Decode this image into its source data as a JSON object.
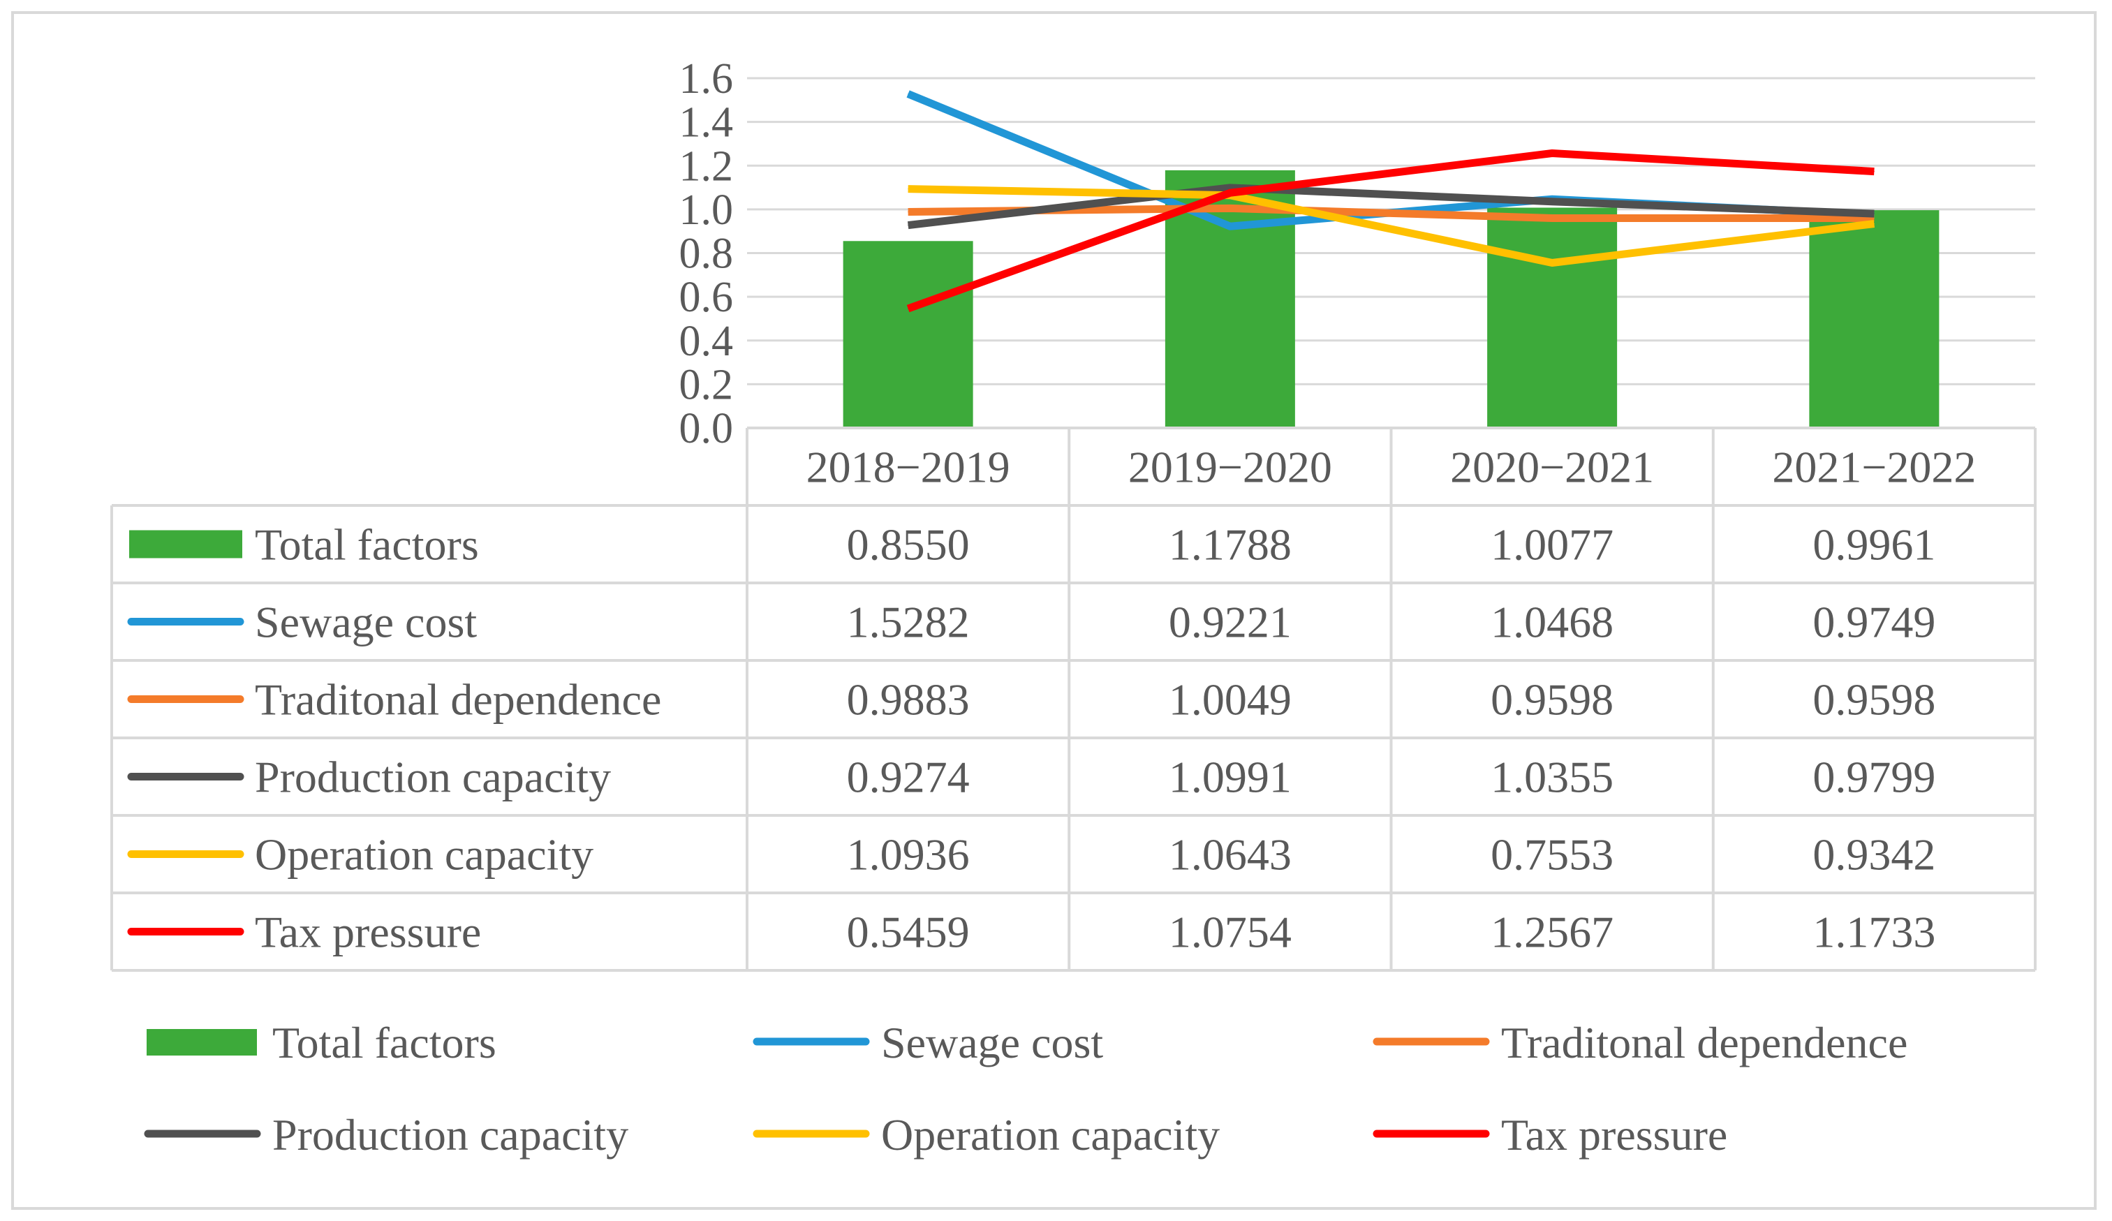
{
  "chart_data": {
    "type": "bar+line+table",
    "title": "",
    "xlabel": "",
    "ylabel": "",
    "ylim": [
      0,
      1.6
    ],
    "ytick_step": 0.2,
    "yticks": [
      "0.0",
      "0.2",
      "0.4",
      "0.6",
      "0.8",
      "1.0",
      "1.2",
      "1.4",
      "1.6"
    ],
    "grid": true,
    "legend_position": "bottom",
    "categories": [
      "2018−2019",
      "2019−2020",
      "2020−2021",
      "2021−2022"
    ],
    "series": [
      {
        "name": "Total factors",
        "kind": "bar",
        "color": "#3daa3a",
        "values": [
          0.855,
          1.1788,
          1.0077,
          0.9961
        ],
        "labels": [
          "0.8550",
          "1.1788",
          "1.0077",
          "0.9961"
        ]
      },
      {
        "name": "Sewage cost",
        "kind": "line",
        "color": "#2196d6",
        "values": [
          1.5282,
          0.9221,
          1.0468,
          0.9749
        ],
        "labels": [
          "1.5282",
          "0.9221",
          "1.0468",
          "0.9749"
        ]
      },
      {
        "name": "Traditonal dependence",
        "kind": "line",
        "color": "#f47b2a",
        "values": [
          0.9883,
          1.0049,
          0.9598,
          0.9598
        ],
        "labels": [
          "0.9883",
          "1.0049",
          "0.9598",
          "0.9598"
        ]
      },
      {
        "name": "Production capacity",
        "kind": "line",
        "color": "#505050",
        "values": [
          0.9274,
          1.0991,
          1.0355,
          0.9799
        ],
        "labels": [
          "0.9274",
          "1.0991",
          "1.0355",
          "0.9799"
        ]
      },
      {
        "name": "Operation capacity",
        "kind": "line",
        "color": "#ffc000",
        "values": [
          1.0936,
          1.0643,
          0.7553,
          0.9342
        ],
        "labels": [
          "1.0936",
          "1.0643",
          "0.7553",
          "0.9342"
        ]
      },
      {
        "name": "Tax pressure",
        "kind": "line",
        "color": "#ff0000",
        "values": [
          0.5459,
          1.0754,
          1.2567,
          1.1733
        ],
        "labels": [
          "0.5459",
          "1.0754",
          "1.2567",
          "1.1733"
        ]
      }
    ]
  }
}
